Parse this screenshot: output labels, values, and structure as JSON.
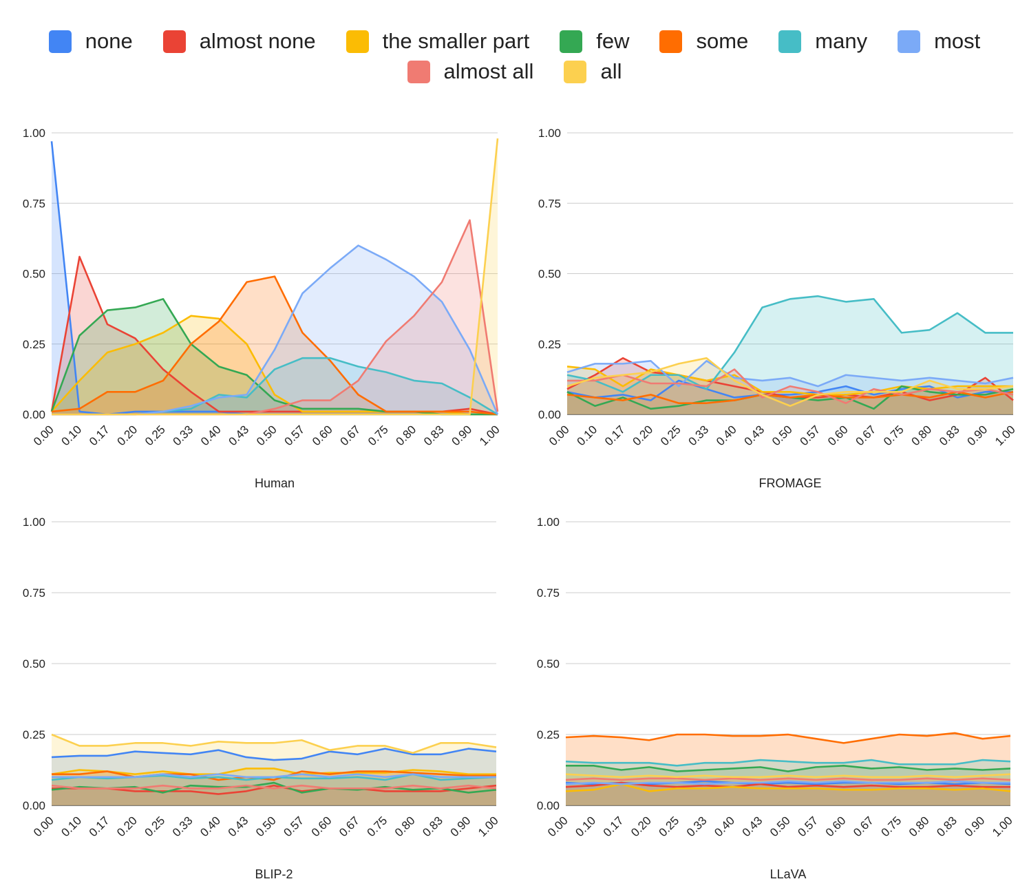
{
  "legend": {
    "items": [
      {
        "label": "none",
        "color": "#4285F4"
      },
      {
        "label": "almost none",
        "color": "#EA4335"
      },
      {
        "label": "the smaller part",
        "color": "#FBBC04"
      },
      {
        "label": "few",
        "color": "#34A853"
      },
      {
        "label": "some",
        "color": "#FF6D01"
      },
      {
        "label": "many",
        "color": "#46BDC6"
      },
      {
        "label": "most",
        "color": "#7BAAF7"
      },
      {
        "label": "almost all",
        "color": "#F07B72"
      },
      {
        "label": "all",
        "color": "#FCD04F"
      }
    ]
  },
  "chart_data": [
    {
      "type": "area",
      "title": "Human",
      "categories": [
        "0.00",
        "0.10",
        "0.17",
        "0.20",
        "0.25",
        "0.33",
        "0.40",
        "0.43",
        "0.50",
        "0.57",
        "0.60",
        "0.67",
        "0.75",
        "0.80",
        "0.83",
        "0.90",
        "1.00"
      ],
      "ylim": [
        0,
        1
      ],
      "yticks": [
        "0.00",
        "0.25",
        "0.50",
        "0.75",
        "1.00"
      ],
      "grid": true,
      "legend": "top",
      "series": [
        {
          "name": "none",
          "values": [
            0.97,
            0.01,
            0.0,
            0.01,
            0.01,
            0.01,
            0.01,
            0.0,
            0.0,
            0.0,
            0.0,
            0.0,
            0.0,
            0.0,
            0.0,
            0.0,
            0.0
          ]
        },
        {
          "name": "almost none",
          "values": [
            0.01,
            0.56,
            0.32,
            0.27,
            0.16,
            0.08,
            0.01,
            0.01,
            0.01,
            0.01,
            0.01,
            0.01,
            0.01,
            0.01,
            0.01,
            0.02,
            0.0
          ]
        },
        {
          "name": "the smaller part",
          "values": [
            0.01,
            0.12,
            0.22,
            0.25,
            0.29,
            0.35,
            0.34,
            0.25,
            0.07,
            0.01,
            0.01,
            0.01,
            0.01,
            0.01,
            0.01,
            0.0,
            0.0
          ]
        },
        {
          "name": "few",
          "values": [
            0.01,
            0.28,
            0.37,
            0.38,
            0.41,
            0.25,
            0.17,
            0.14,
            0.05,
            0.02,
            0.02,
            0.02,
            0.01,
            0.01,
            0.0,
            0.0,
            0.0
          ]
        },
        {
          "name": "some",
          "values": [
            0.01,
            0.02,
            0.08,
            0.08,
            0.12,
            0.25,
            0.33,
            0.47,
            0.49,
            0.29,
            0.19,
            0.07,
            0.01,
            0.01,
            0.01,
            0.01,
            0.0
          ]
        },
        {
          "name": "many",
          "values": [
            0.0,
            0.0,
            0.0,
            0.0,
            0.01,
            0.02,
            0.07,
            0.06,
            0.16,
            0.2,
            0.2,
            0.17,
            0.15,
            0.12,
            0.11,
            0.06,
            0.0
          ]
        },
        {
          "name": "most",
          "values": [
            0.0,
            0.0,
            0.0,
            0.0,
            0.01,
            0.03,
            0.06,
            0.07,
            0.23,
            0.43,
            0.52,
            0.6,
            0.55,
            0.49,
            0.4,
            0.23,
            0.0
          ]
        },
        {
          "name": "almost all",
          "values": [
            0.0,
            0.0,
            0.0,
            0.0,
            0.0,
            0.0,
            0.0,
            0.0,
            0.02,
            0.05,
            0.05,
            0.12,
            0.26,
            0.35,
            0.47,
            0.69,
            0.01
          ]
        },
        {
          "name": "all",
          "values": [
            0.0,
            0.0,
            0.0,
            0.0,
            0.0,
            0.0,
            0.0,
            0.0,
            0.0,
            0.0,
            0.0,
            0.0,
            0.0,
            0.0,
            0.0,
            0.0,
            0.98
          ]
        }
      ]
    },
    {
      "type": "area",
      "title": "FROMAGE",
      "categories": [
        "0.00",
        "0.10",
        "0.17",
        "0.20",
        "0.25",
        "0.33",
        "0.40",
        "0.43",
        "0.50",
        "0.57",
        "0.60",
        "0.67",
        "0.75",
        "0.80",
        "0.83",
        "0.90",
        "1.00"
      ],
      "ylim": [
        0,
        1
      ],
      "yticks": [
        "0.00",
        "0.25",
        "0.50",
        "0.75",
        "1.00"
      ],
      "grid": true,
      "series": [
        {
          "name": "none",
          "values": [
            0.08,
            0.06,
            0.07,
            0.05,
            0.12,
            0.09,
            0.06,
            0.07,
            0.07,
            0.08,
            0.1,
            0.07,
            0.09,
            0.1,
            0.06,
            0.08,
            0.08
          ]
        },
        {
          "name": "almost none",
          "values": [
            0.09,
            0.14,
            0.2,
            0.15,
            0.14,
            0.12,
            0.1,
            0.08,
            0.06,
            0.06,
            0.07,
            0.06,
            0.08,
            0.05,
            0.07,
            0.13,
            0.05
          ]
        },
        {
          "name": "the smaller part",
          "values": [
            0.17,
            0.16,
            0.1,
            0.16,
            0.14,
            0.12,
            0.14,
            0.08,
            0.08,
            0.07,
            0.07,
            0.08,
            0.1,
            0.09,
            0.1,
            0.1,
            0.1
          ]
        },
        {
          "name": "few",
          "values": [
            0.08,
            0.03,
            0.06,
            0.02,
            0.03,
            0.05,
            0.05,
            0.07,
            0.06,
            0.05,
            0.06,
            0.02,
            0.1,
            0.08,
            0.07,
            0.07,
            0.09
          ]
        },
        {
          "name": "some",
          "values": [
            0.07,
            0.06,
            0.05,
            0.07,
            0.04,
            0.04,
            0.05,
            0.07,
            0.06,
            0.07,
            0.06,
            0.06,
            0.07,
            0.06,
            0.08,
            0.06,
            0.08
          ]
        },
        {
          "name": "many",
          "values": [
            0.14,
            0.12,
            0.08,
            0.14,
            0.14,
            0.09,
            0.22,
            0.38,
            0.41,
            0.42,
            0.4,
            0.41,
            0.29,
            0.3,
            0.36,
            0.29,
            0.29
          ]
        },
        {
          "name": "most",
          "values": [
            0.15,
            0.18,
            0.18,
            0.19,
            0.1,
            0.19,
            0.13,
            0.12,
            0.13,
            0.1,
            0.14,
            0.13,
            0.12,
            0.13,
            0.12,
            0.11,
            0.13
          ]
        },
        {
          "name": "almost all",
          "values": [
            0.12,
            0.12,
            0.14,
            0.11,
            0.11,
            0.1,
            0.16,
            0.06,
            0.1,
            0.08,
            0.04,
            0.09,
            0.07,
            0.09,
            0.08,
            0.09,
            0.07
          ]
        },
        {
          "name": "all",
          "values": [
            0.1,
            0.13,
            0.14,
            0.15,
            0.18,
            0.2,
            0.12,
            0.07,
            0.03,
            0.07,
            0.08,
            0.08,
            0.08,
            0.12,
            0.09,
            0.09,
            0.1
          ]
        }
      ]
    },
    {
      "type": "area",
      "title": "BLIP-2",
      "categories": [
        "0.00",
        "0.10",
        "0.17",
        "0.20",
        "0.25",
        "0.33",
        "0.40",
        "0.43",
        "0.50",
        "0.57",
        "0.60",
        "0.67",
        "0.75",
        "0.80",
        "0.83",
        "0.90",
        "1.00"
      ],
      "ylim": [
        0,
        1
      ],
      "yticks": [
        "0.00",
        "0.25",
        "0.50",
        "0.75",
        "1.00"
      ],
      "grid": true,
      "series": [
        {
          "name": "none",
          "values": [
            0.17,
            0.175,
            0.175,
            0.19,
            0.185,
            0.18,
            0.195,
            0.17,
            0.16,
            0.165,
            0.19,
            0.18,
            0.2,
            0.18,
            0.18,
            0.2,
            0.19
          ]
        },
        {
          "name": "almost none",
          "values": [
            0.06,
            0.06,
            0.06,
            0.05,
            0.05,
            0.05,
            0.04,
            0.05,
            0.07,
            0.05,
            0.06,
            0.06,
            0.05,
            0.05,
            0.05,
            0.06,
            0.07
          ]
        },
        {
          "name": "the smaller part",
          "values": [
            0.11,
            0.125,
            0.12,
            0.11,
            0.12,
            0.11,
            0.11,
            0.13,
            0.13,
            0.11,
            0.115,
            0.115,
            0.115,
            0.125,
            0.12,
            0.11,
            0.11
          ]
        },
        {
          "name": "few",
          "values": [
            0.055,
            0.065,
            0.06,
            0.065,
            0.045,
            0.07,
            0.065,
            0.065,
            0.08,
            0.045,
            0.06,
            0.055,
            0.065,
            0.055,
            0.06,
            0.045,
            0.055
          ]
        },
        {
          "name": "some",
          "values": [
            0.11,
            0.11,
            0.12,
            0.1,
            0.11,
            0.11,
            0.09,
            0.1,
            0.09,
            0.12,
            0.11,
            0.12,
            0.12,
            0.115,
            0.11,
            0.105,
            0.105
          ]
        },
        {
          "name": "many",
          "values": [
            0.09,
            0.1,
            0.095,
            0.1,
            0.105,
            0.095,
            0.1,
            0.09,
            0.1,
            0.095,
            0.095,
            0.1,
            0.09,
            0.11,
            0.09,
            0.095,
            0.1
          ]
        },
        {
          "name": "most",
          "values": [
            0.1,
            0.1,
            0.1,
            0.1,
            0.11,
            0.1,
            0.11,
            0.1,
            0.1,
            0.11,
            0.1,
            0.11,
            0.1,
            0.11,
            0.1,
            0.1,
            0.1
          ]
        },
        {
          "name": "almost all",
          "values": [
            0.07,
            0.06,
            0.06,
            0.06,
            0.07,
            0.06,
            0.06,
            0.07,
            0.06,
            0.07,
            0.06,
            0.06,
            0.06,
            0.07,
            0.06,
            0.07,
            0.06
          ]
        },
        {
          "name": "all",
          "values": [
            0.25,
            0.21,
            0.21,
            0.22,
            0.22,
            0.21,
            0.225,
            0.22,
            0.22,
            0.23,
            0.195,
            0.21,
            0.21,
            0.185,
            0.22,
            0.22,
            0.205
          ]
        }
      ]
    },
    {
      "type": "area",
      "title": "LLaVA",
      "categories": [
        "0.00",
        "0.10",
        "0.17",
        "0.20",
        "0.25",
        "0.33",
        "0.40",
        "0.43",
        "0.50",
        "0.57",
        "0.60",
        "0.67",
        "0.75",
        "0.80",
        "0.83",
        "0.90",
        "1.00"
      ],
      "ylim": [
        0,
        1
      ],
      "yticks": [
        "0.00",
        "0.25",
        "0.50",
        "0.75",
        "1.00"
      ],
      "grid": true,
      "series": [
        {
          "name": "none",
          "values": [
            0.08,
            0.075,
            0.08,
            0.075,
            0.08,
            0.085,
            0.08,
            0.075,
            0.08,
            0.075,
            0.08,
            0.08,
            0.075,
            0.08,
            0.075,
            0.08,
            0.075
          ]
        },
        {
          "name": "almost none",
          "values": [
            0.065,
            0.07,
            0.08,
            0.07,
            0.065,
            0.07,
            0.065,
            0.075,
            0.065,
            0.07,
            0.065,
            0.07,
            0.065,
            0.065,
            0.07,
            0.065,
            0.065
          ]
        },
        {
          "name": "the smaller part",
          "values": [
            0.05,
            0.055,
            0.075,
            0.05,
            0.06,
            0.06,
            0.065,
            0.06,
            0.06,
            0.06,
            0.055,
            0.055,
            0.06,
            0.06,
            0.055,
            0.06,
            0.05
          ]
        },
        {
          "name": "few",
          "values": [
            0.14,
            0.14,
            0.125,
            0.135,
            0.12,
            0.125,
            0.13,
            0.135,
            0.12,
            0.135,
            0.14,
            0.13,
            0.135,
            0.125,
            0.13,
            0.125,
            0.13
          ]
        },
        {
          "name": "some",
          "values": [
            0.24,
            0.245,
            0.24,
            0.23,
            0.25,
            0.25,
            0.245,
            0.245,
            0.25,
            0.235,
            0.22,
            0.235,
            0.25,
            0.245,
            0.255,
            0.235,
            0.245
          ]
        },
        {
          "name": "many",
          "values": [
            0.155,
            0.15,
            0.15,
            0.15,
            0.14,
            0.15,
            0.15,
            0.16,
            0.155,
            0.15,
            0.15,
            0.16,
            0.145,
            0.145,
            0.145,
            0.16,
            0.155
          ]
        },
        {
          "name": "most",
          "values": [
            0.075,
            0.08,
            0.075,
            0.08,
            0.08,
            0.075,
            0.08,
            0.08,
            0.085,
            0.08,
            0.085,
            0.08,
            0.08,
            0.08,
            0.085,
            0.08,
            0.08
          ]
        },
        {
          "name": "almost all",
          "values": [
            0.09,
            0.095,
            0.09,
            0.095,
            0.095,
            0.09,
            0.095,
            0.09,
            0.095,
            0.09,
            0.095,
            0.09,
            0.09,
            0.095,
            0.09,
            0.095,
            0.09
          ]
        },
        {
          "name": "all",
          "values": [
            0.11,
            0.105,
            0.1,
            0.105,
            0.1,
            0.105,
            0.1,
            0.1,
            0.105,
            0.1,
            0.105,
            0.1,
            0.1,
            0.105,
            0.1,
            0.105,
            0.11
          ]
        }
      ]
    }
  ]
}
